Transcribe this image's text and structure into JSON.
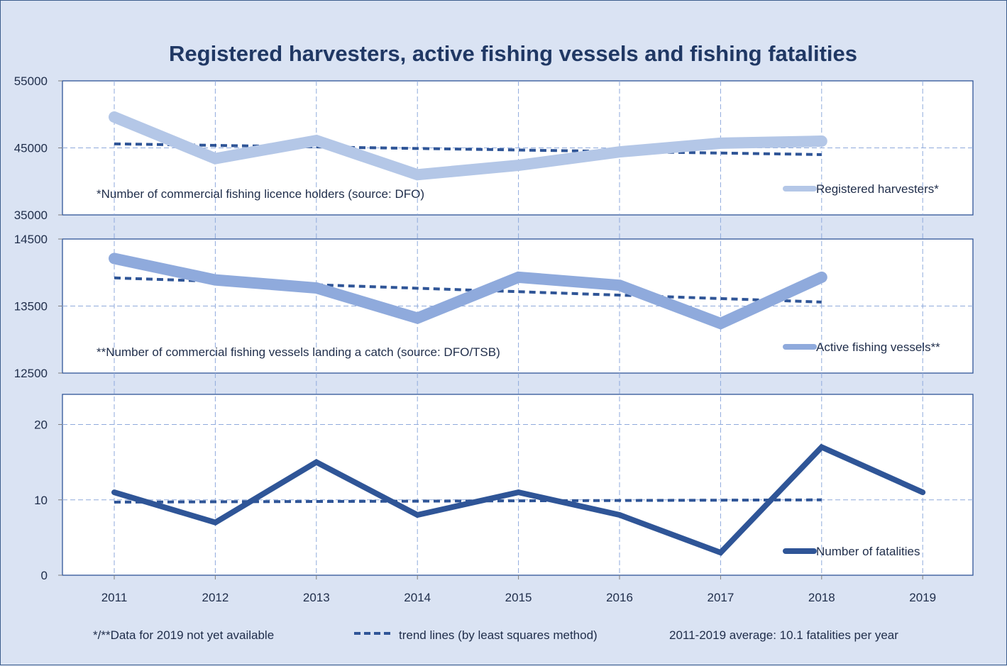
{
  "chart_data": {
    "type": "line",
    "title": "Registered harvesters, active fishing vessels and fishing fatalities",
    "x": [
      "2011",
      "2012",
      "2013",
      "2014",
      "2015",
      "2016",
      "2017",
      "2018",
      "2019"
    ],
    "grid": true,
    "panels": [
      {
        "id": "harvesters",
        "ylim": [
          35000,
          55000
        ],
        "yticks": [
          "55000",
          "45000",
          "35000"
        ],
        "ytick_values": [
          55000,
          45000,
          35000
        ],
        "note": "*Number of commercial fishing licence holders (source: DFO)",
        "legend": "Registered harvesters*",
        "legend_position": "bottom-right",
        "series": [
          {
            "name": "Registered harvesters*",
            "color": "#b4c7e7",
            "values": [
              49600,
              43400,
              46100,
              41000,
              42400,
              44400,
              45700,
              46000,
              null
            ]
          }
        ],
        "trend": {
          "name": "trend line",
          "from": [
            "2011",
            45600
          ],
          "to": [
            "2018",
            44000
          ],
          "color": "#2f5597"
        }
      },
      {
        "id": "vessels",
        "ylim": [
          12500,
          14500
        ],
        "yticks": [
          "14500",
          "13500",
          "12500"
        ],
        "ytick_values": [
          14500,
          13500,
          12500
        ],
        "note": "**Number of commercial fishing vessels landing a catch (source: DFO/TSB)",
        "legend": "Active fishing vessels**",
        "legend_position": "bottom-right",
        "series": [
          {
            "name": "Active fishing vessels**",
            "color": "#8faadc",
            "values": [
              14210,
              13890,
              13770,
              13320,
              13930,
              13810,
              13240,
              13930,
              null
            ]
          }
        ],
        "trend": {
          "name": "trend line",
          "from": [
            "2011",
            13920
          ],
          "to": [
            "2018",
            13560
          ],
          "color": "#2f5597"
        }
      },
      {
        "id": "fatalities",
        "ylim": [
          0,
          24
        ],
        "yticks": [
          "20",
          "10",
          "0"
        ],
        "ytick_values": [
          20,
          10,
          0
        ],
        "note": "",
        "legend": "Number of fatalities",
        "legend_position": "bottom-right",
        "series": [
          {
            "name": "Number of fatalities",
            "color": "#2f5597",
            "values": [
              11,
              7,
              15,
              8,
              11,
              8,
              3,
              17,
              11
            ]
          }
        ],
        "trend": {
          "name": "trend line",
          "from": [
            "2011",
            9.7
          ],
          "to": [
            "2018",
            10.0
          ],
          "color": "#2f5597"
        }
      }
    ],
    "footer": {
      "availability_note": "*/**Data for 2019 not yet available",
      "trend_legend": "trend lines (by least squares method)",
      "average_note": "2011-2019 average: 10.1 fatalities per year"
    }
  }
}
